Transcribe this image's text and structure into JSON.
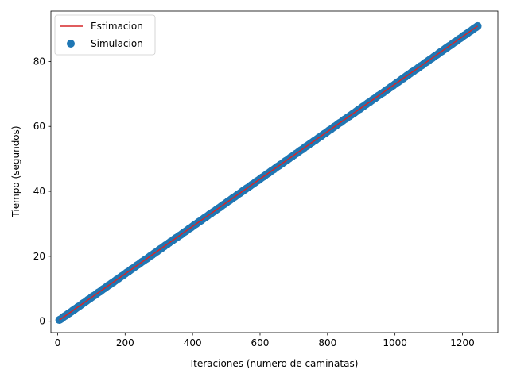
{
  "chart_data": {
    "type": "scatter",
    "xlabel": "Iteraciones (numero de caminatas)",
    "ylabel": "Tiempo (segundos)",
    "xlim": [
      -20,
      1305
    ],
    "ylim": [
      -3.5,
      95.5
    ],
    "xticks": [
      0,
      200,
      400,
      600,
      800,
      1000,
      1200
    ],
    "yticks": [
      0,
      20,
      40,
      60,
      80
    ],
    "xtick_labels": [
      "0",
      "200",
      "400",
      "600",
      "800",
      "1000",
      "1200"
    ],
    "ytick_labels": [
      "0",
      "20",
      "40",
      "60",
      "80"
    ],
    "grid": false,
    "legend_position": "upper-left",
    "legend": [
      {
        "name": "Estimacion",
        "kind": "line",
        "color": "#d62728"
      },
      {
        "name": "Simulacion",
        "kind": "marker",
        "color": "#1f77b4"
      }
    ],
    "series": [
      {
        "name": "Estimacion",
        "kind": "line",
        "color": "#d62728",
        "x": [
          5,
          100,
          200,
          300,
          400,
          500,
          600,
          700,
          800,
          900,
          1000,
          1100,
          1245
        ],
        "y": [
          0.35,
          7.3,
          14.6,
          21.9,
          29.2,
          36.5,
          43.8,
          51.1,
          58.4,
          65.7,
          73.0,
          80.3,
          90.9
        ]
      },
      {
        "name": "Simulacion",
        "kind": "scatter",
        "color": "#1f77b4",
        "x": [
          5,
          10,
          15,
          20,
          25,
          30,
          35,
          40,
          45,
          50,
          55,
          60,
          65,
          70,
          75,
          80,
          85,
          90,
          95,
          100,
          105,
          110,
          115,
          120,
          125,
          130,
          135,
          140,
          145,
          150,
          155,
          160,
          165,
          170,
          175,
          180,
          185,
          190,
          195,
          200,
          205,
          210,
          215,
          220,
          225,
          230,
          235,
          240,
          245,
          250,
          255,
          260,
          265,
          270,
          275,
          280,
          285,
          290,
          295,
          300,
          305,
          310,
          315,
          320,
          325,
          330,
          335,
          340,
          345,
          350,
          355,
          360,
          365,
          370,
          375,
          380,
          385,
          390,
          395,
          400,
          405,
          410,
          415,
          420,
          425,
          430,
          435,
          440,
          445,
          450,
          455,
          460,
          465,
          470,
          475,
          480,
          485,
          490,
          495,
          500,
          505,
          510,
          515,
          520,
          525,
          530,
          535,
          540,
          545,
          550,
          555,
          560,
          565,
          570,
          575,
          580,
          585,
          590,
          595,
          600,
          605,
          610,
          615,
          620,
          625,
          630,
          635,
          640,
          645,
          650,
          655,
          660,
          665,
          670,
          675,
          680,
          685,
          690,
          695,
          700,
          705,
          710,
          715,
          720,
          725,
          730,
          735,
          740,
          745,
          750,
          755,
          760,
          765,
          770,
          775,
          780,
          785,
          790,
          795,
          800,
          805,
          810,
          815,
          820,
          825,
          830,
          835,
          840,
          845,
          850,
          855,
          860,
          865,
          870,
          875,
          880,
          885,
          890,
          895,
          900,
          905,
          910,
          915,
          920,
          925,
          930,
          935,
          940,
          945,
          950,
          955,
          960,
          965,
          970,
          975,
          980,
          985,
          990,
          995,
          1000,
          1005,
          1010,
          1015,
          1020,
          1025,
          1030,
          1035,
          1040,
          1045,
          1050,
          1055,
          1060,
          1065,
          1070,
          1075,
          1080,
          1085,
          1090,
          1095,
          1100,
          1105,
          1110,
          1115,
          1120,
          1125,
          1130,
          1135,
          1140,
          1145,
          1150,
          1155,
          1160,
          1165,
          1170,
          1175,
          1180,
          1185,
          1190,
          1195,
          1200,
          1205,
          1210,
          1215,
          1220,
          1225,
          1230,
          1235,
          1240,
          1245
        ],
        "y": [
          0.4,
          0.7,
          1.1,
          1.5,
          1.8,
          2.2,
          2.5,
          2.9,
          3.3,
          3.6,
          4.0,
          4.4,
          4.7,
          5.1,
          5.5,
          5.8,
          6.2,
          6.6,
          6.9,
          7.3,
          7.7,
          8.0,
          8.4,
          8.8,
          9.1,
          9.5,
          9.9,
          10.2,
          10.6,
          11.0,
          11.3,
          11.7,
          12.0,
          12.4,
          12.8,
          13.1,
          13.5,
          13.9,
          14.2,
          14.6,
          15.0,
          15.3,
          15.7,
          16.1,
          16.4,
          16.8,
          17.2,
          17.5,
          17.9,
          18.3,
          18.6,
          19.0,
          19.3,
          19.7,
          20.1,
          20.4,
          20.8,
          21.2,
          21.5,
          21.9,
          22.3,
          22.6,
          23.0,
          23.4,
          23.7,
          24.1,
          24.5,
          24.8,
          25.2,
          25.6,
          25.9,
          26.3,
          26.6,
          27.0,
          27.4,
          27.7,
          28.1,
          28.5,
          28.8,
          29.2,
          29.6,
          29.9,
          30.3,
          30.7,
          31.0,
          31.4,
          31.8,
          32.1,
          32.5,
          32.9,
          33.2,
          33.6,
          33.9,
          34.3,
          34.7,
          35.0,
          35.4,
          35.8,
          36.1,
          36.5,
          36.9,
          37.2,
          37.6,
          38.0,
          38.3,
          38.7,
          39.1,
          39.4,
          39.8,
          40.2,
          40.5,
          40.9,
          41.2,
          41.6,
          42.0,
          42.3,
          42.7,
          43.1,
          43.4,
          43.8,
          44.2,
          44.5,
          44.9,
          45.3,
          45.6,
          46.0,
          46.4,
          46.7,
          47.1,
          47.5,
          47.8,
          48.2,
          48.5,
          48.9,
          49.3,
          49.6,
          50.0,
          50.4,
          50.7,
          51.1,
          51.5,
          51.8,
          52.2,
          52.6,
          52.9,
          53.3,
          53.7,
          54.0,
          54.4,
          54.8,
          55.1,
          55.5,
          55.8,
          56.2,
          56.6,
          56.9,
          57.3,
          57.7,
          58.0,
          58.4,
          58.8,
          59.1,
          59.5,
          59.9,
          60.2,
          60.6,
          61.0,
          61.3,
          61.7,
          62.1,
          62.4,
          62.8,
          63.1,
          63.5,
          63.9,
          64.2,
          64.6,
          65.0,
          65.3,
          65.7,
          66.1,
          66.4,
          66.8,
          67.2,
          67.5,
          67.9,
          68.3,
          68.6,
          69.0,
          69.4,
          69.7,
          70.1,
          70.4,
          70.8,
          71.2,
          71.5,
          71.9,
          72.3,
          72.6,
          73.0,
          73.4,
          73.7,
          74.1,
          74.5,
          74.8,
          75.2,
          75.6,
          75.9,
          76.3,
          76.7,
          77.0,
          77.4,
          77.7,
          78.1,
          78.5,
          78.8,
          79.2,
          79.6,
          79.9,
          80.3,
          80.7,
          81.0,
          81.4,
          81.8,
          82.1,
          82.5,
          82.9,
          83.2,
          83.6,
          84.0,
          84.3,
          84.7,
          85.0,
          85.4,
          85.8,
          86.1,
          86.5,
          86.9,
          87.2,
          87.6,
          88.0,
          88.3,
          88.7,
          89.1,
          89.4,
          89.8,
          90.2,
          90.5,
          90.9
        ]
      }
    ]
  }
}
